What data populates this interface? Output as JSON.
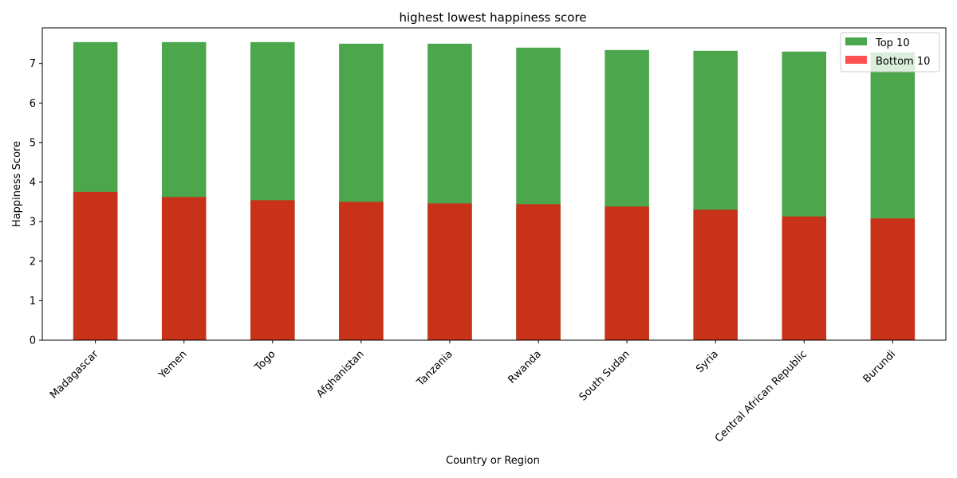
{
  "chart_data": {
    "type": "bar",
    "title": "highest lowest happiness score",
    "xlabel": "Country or Region",
    "ylabel": "Happiness Score",
    "ylim": [
      0,
      7.9
    ],
    "yticks": [
      0,
      1,
      2,
      3,
      4,
      5,
      6,
      7
    ],
    "grid": false,
    "legend_position": "top-right",
    "categories": [
      "Madagascar",
      "Yemen",
      "Togo",
      "Afghanistan",
      "Tanzania",
      "Rwanda",
      "South Sudan",
      "Syria",
      "Central African Republic",
      "Burundi"
    ],
    "series": [
      {
        "name": "Top 10",
        "color": "#4ca64c",
        "values": [
          7.54,
          7.54,
          7.54,
          7.5,
          7.5,
          7.4,
          7.34,
          7.32,
          7.3,
          7.28
        ]
      },
      {
        "name": "Bottom 10",
        "color": "#ff3333",
        "overlap_color": "#c83218",
        "values": [
          3.75,
          3.62,
          3.54,
          3.5,
          3.46,
          3.44,
          3.38,
          3.3,
          3.13,
          3.08
        ]
      }
    ]
  }
}
